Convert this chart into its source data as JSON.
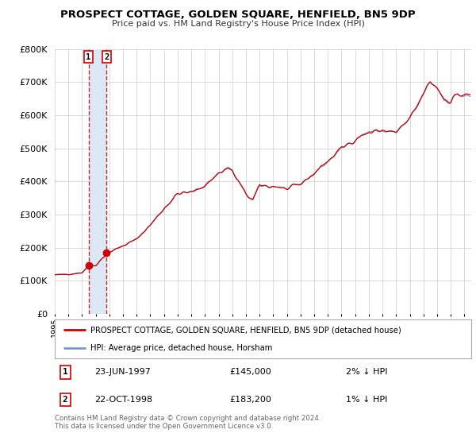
{
  "title": "PROSPECT COTTAGE, GOLDEN SQUARE, HENFIELD, BN5 9DP",
  "subtitle": "Price paid vs. HM Land Registry's House Price Index (HPI)",
  "legend_line1": "PROSPECT COTTAGE, GOLDEN SQUARE, HENFIELD, BN5 9DP (detached house)",
  "legend_line2": "HPI: Average price, detached house, Horsham",
  "sale1_label": "1",
  "sale1_date": "23-JUN-1997",
  "sale1_price": 145000,
  "sale1_hpi_rel": "2% ↓ HPI",
  "sale1_year": 1997.47,
  "sale2_label": "2",
  "sale2_date": "22-OCT-1998",
  "sale2_price": 183200,
  "sale2_hpi_rel": "1% ↓ HPI",
  "sale2_year": 1998.8,
  "footer": "Contains HM Land Registry data © Crown copyright and database right 2024.\nThis data is licensed under the Open Government Licence v3.0.",
  "line_color_red": "#cc0000",
  "line_color_blue": "#7799cc",
  "shade_color": "#dde8f5",
  "background_plot": "#ffffff",
  "background_fig": "#ffffff",
  "grid_color": "#cccccc",
  "ylim": [
    0,
    800000
  ],
  "xlim_start": 1995.0,
  "xlim_end": 2025.5
}
